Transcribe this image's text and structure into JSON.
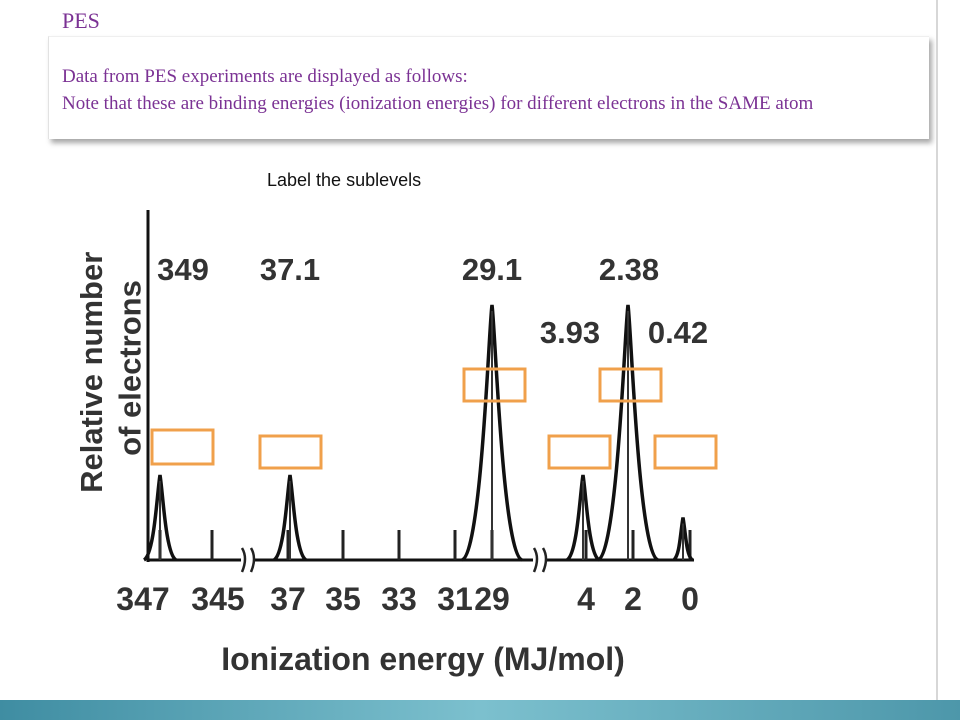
{
  "page": {
    "title": "PES",
    "note_line1": "Data from PES experiments are displayed as follows:",
    "note_line2": "Note that these are binding energies (ionization energies) for different electrons in the SAME atom",
    "instruction": "Label the sublevels",
    "colors": {
      "note_text": "#7b3294",
      "label_box": "#f0a04b",
      "band": "#5aa9bb"
    }
  },
  "chart_data": {
    "type": "line",
    "xlabel": "Ionization energy (MJ/mol)",
    "ylabel": "Relative number of electrons",
    "x_axis": "reversed, broken",
    "x_ticks": [
      "347",
      "345",
      "37",
      "35",
      "33",
      "31",
      "29",
      "4",
      "2",
      "0"
    ],
    "peaks": [
      {
        "energy_label": "349",
        "relative_height": 1
      },
      {
        "energy_label": "37.1",
        "relative_height": 1
      },
      {
        "energy_label": "29.1",
        "relative_height": 3
      },
      {
        "energy_label": "3.93",
        "relative_height": 1
      },
      {
        "energy_label": "2.38",
        "relative_height": 3
      },
      {
        "energy_label": "0.42",
        "relative_height": 0.5
      }
    ],
    "answer_boxes": 6
  }
}
